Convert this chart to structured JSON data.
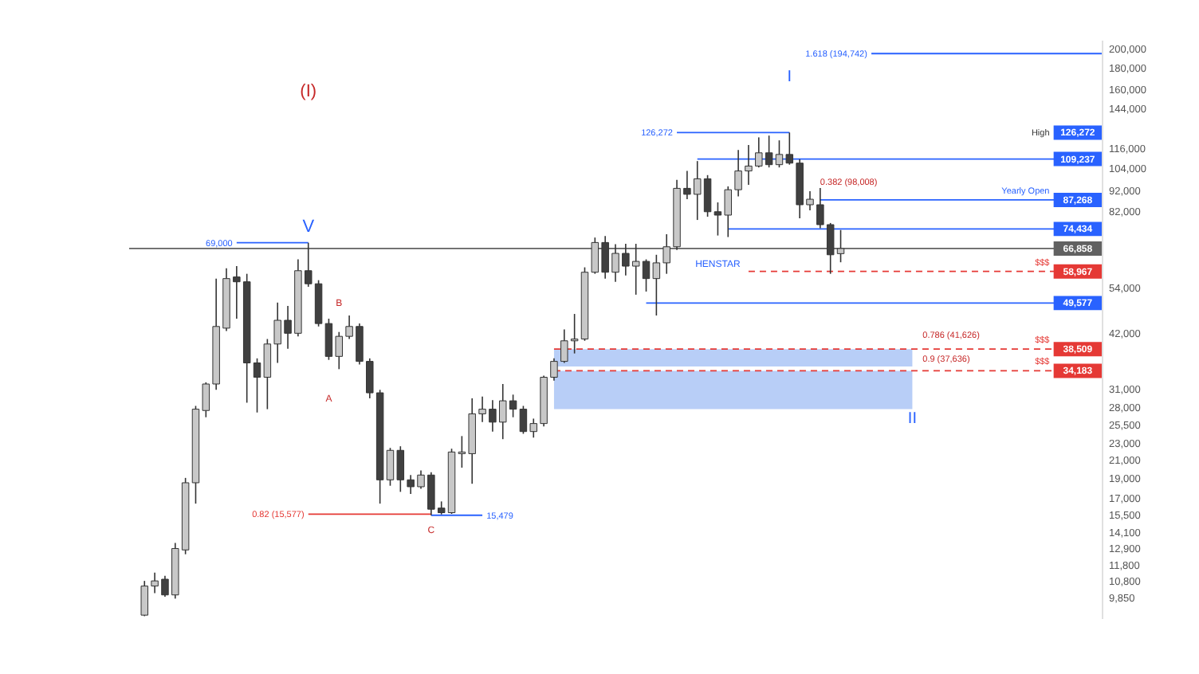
{
  "chart_data": {
    "type": "candlestick",
    "log": true,
    "categories": [
      null,
      null,
      null,
      null,
      null,
      null,
      null,
      null,
      null,
      null,
      null,
      null,
      null,
      null,
      null,
      null,
      null,
      null,
      null,
      null,
      null,
      null,
      null,
      null,
      null,
      null,
      null,
      null,
      null,
      null,
      null,
      null,
      null,
      null,
      null,
      null,
      null,
      null,
      null,
      null,
      null,
      null,
      null,
      null,
      null,
      null,
      null,
      null,
      null,
      null,
      null,
      null,
      null,
      null,
      null,
      null,
      null,
      null,
      null,
      null,
      null,
      null,
      null,
      null,
      null,
      null,
      null,
      null,
      null,
      null,
      null,
      null,
      null,
      null,
      null,
      null,
      null,
      null,
      null,
      null,
      null,
      null,
      null,
      null,
      null,
      null,
      null,
      null,
      null,
      null,
      null,
      null,
      null,
      null,
      null
    ],
    "ohlc": [
      null,
      [
        8950,
        10800,
        8900,
        10500
      ],
      [
        10500,
        11300,
        10100,
        10800
      ],
      [
        10900,
        11100,
        9900,
        10000
      ],
      [
        10000,
        13300,
        9800,
        12900
      ],
      [
        12800,
        19000,
        12500,
        18500
      ],
      [
        18500,
        28200,
        16500,
        27700
      ],
      [
        27500,
        32100,
        26500,
        31800
      ],
      [
        31800,
        56700,
        30800,
        43600
      ],
      [
        43200,
        60000,
        42500,
        56700
      ],
      [
        57200,
        60700,
        45500,
        55700
      ],
      [
        55700,
        58200,
        28700,
        35700
      ],
      [
        35700,
        36600,
        27200,
        33000
      ],
      [
        33000,
        40700,
        27700,
        39600
      ],
      [
        39600,
        49700,
        35700,
        45100
      ],
      [
        45100,
        48800,
        38600,
        42000
      ],
      [
        42000,
        63000,
        41300,
        59200
      ],
      [
        59200,
        69000,
        54200,
        55100
      ],
      [
        55100,
        56200,
        43600,
        44300
      ],
      [
        44300,
        45500,
        36300,
        37000
      ],
      [
        37000,
        42300,
        34500,
        41300
      ],
      [
        41300,
        46300,
        40700,
        43600
      ],
      [
        43600,
        44300,
        35400,
        36000
      ],
      [
        36000,
        36600,
        29400,
        30300
      ],
      [
        30300,
        30800,
        16500,
        18800
      ],
      [
        18800,
        22400,
        18200,
        22100
      ],
      [
        22100,
        22600,
        17600,
        18800
      ],
      [
        18800,
        19300,
        17400,
        18100
      ],
      [
        18100,
        19800,
        17900,
        19300
      ],
      [
        19300,
        19600,
        15479,
        16000
      ],
      [
        16100,
        16700,
        15550,
        15700
      ],
      [
        15700,
        22300,
        15600,
        21900
      ],
      [
        21700,
        23900,
        20100,
        21900
      ],
      [
        21700,
        29400,
        18400,
        27000
      ],
      [
        27000,
        29700,
        25800,
        27700
      ],
      [
        27700,
        29100,
        24500,
        25800
      ],
      [
        25800,
        31800,
        23500,
        29000
      ],
      [
        29000,
        30000,
        26500,
        27700
      ],
      [
        27700,
        28200,
        24200,
        24500
      ],
      [
        24500,
        26300,
        23700,
        25600
      ],
      [
        25600,
        33300,
        25200,
        33000
      ],
      [
        33000,
        36600,
        32400,
        36000
      ],
      [
        36000,
        42900,
        35700,
        40300
      ],
      [
        40300,
        46700,
        37600,
        40700
      ],
      [
        40700,
        60300,
        40300,
        58700
      ],
      [
        58700,
        71000,
        58200,
        69100
      ],
      [
        69100,
        71600,
        56700,
        58700
      ],
      [
        58700,
        68500,
        55700,
        65100
      ],
      [
        65100,
        68600,
        57700,
        60700
      ],
      [
        60700,
        68600,
        51900,
        62300
      ],
      [
        62300,
        63000,
        52800,
        56700
      ],
      [
        56700,
        64600,
        46300,
        61800
      ],
      [
        61800,
        72300,
        58200,
        67500
      ],
      [
        67500,
        97400,
        66300,
        93000
      ],
      [
        93000,
        102300,
        87600,
        90000
      ],
      [
        90000,
        108000,
        78200,
        98000
      ],
      [
        98000,
        100000,
        79600,
        81800
      ],
      [
        81800,
        86100,
        71800,
        80300
      ],
      [
        80300,
        94000,
        71200,
        92300
      ],
      [
        92300,
        114800,
        89000,
        102300
      ],
      [
        102300,
        118000,
        94800,
        105100
      ],
      [
        105100,
        123000,
        104300,
        113000
      ],
      [
        113000,
        124200,
        104300,
        105900
      ],
      [
        105900,
        121000,
        104300,
        112000
      ],
      [
        112000,
        126272,
        105900,
        106800
      ],
      [
        106800,
        109000,
        78900,
        85000
      ],
      [
        85000,
        91500,
        82400,
        87600
      ],
      [
        85000,
        93200,
        74700,
        76200
      ],
      [
        76200,
        76900,
        58200,
        64600
      ],
      [
        65000,
        74000,
        62000,
        66858
      ],
      null,
      null,
      null,
      null,
      null,
      null,
      null,
      null,
      null,
      null,
      null,
      null,
      null,
      null,
      null,
      null,
      null,
      null,
      null,
      null,
      null,
      null,
      null,
      null,
      null
    ],
    "colors": [
      null,
      "#c8c8c8",
      "#c8c8c8",
      "#404040",
      "#c8c8c8",
      "#c8c8c8",
      "#c8c8c8",
      "#c8c8c8",
      "#c8c8c8",
      "#c8c8c8",
      "#404040",
      "#404040",
      "#404040",
      "#c8c8c8",
      "#c8c8c8",
      "#404040",
      "#c8c8c8",
      "#404040",
      "#404040",
      "#404040",
      "#c8c8c8",
      "#c8c8c8",
      "#404040",
      "#404040",
      "#404040",
      "#c8c8c8",
      "#404040",
      "#404040",
      "#c8c8c8",
      "#404040",
      "#404040",
      "#c8c8c8",
      "#c8c8c8",
      "#c8c8c8",
      "#c8c8c8",
      "#404040",
      "#c8c8c8",
      "#404040",
      "#404040",
      "#c8c8c8",
      "#c8c8c8",
      "#c8c8c8",
      "#c8c8c8",
      "#c8c8c8",
      "#c8c8c8",
      "#c8c8c8",
      "#404040",
      "#c8c8c8",
      "#404040",
      "#c8c8c8",
      "#404040",
      "#c8c8c8",
      "#c8c8c8",
      "#c8c8c8",
      "#404040",
      "#c8c8c8",
      "#404040",
      "#404040",
      "#c8c8c8",
      "#c8c8c8",
      "#c8c8c8",
      "#c8c8c8",
      "#404040",
      "#c8c8c8",
      "#404040",
      "#404040",
      "#c8c8c8",
      "#404040",
      "#404040",
      "#c8c8c8",
      null,
      null,
      null,
      null,
      null,
      null,
      null,
      null,
      null,
      null,
      null,
      null,
      null,
      null,
      null,
      null,
      null,
      null,
      null,
      null,
      null,
      null,
      null,
      null,
      null
    ],
    "ylim": [
      8800,
      210000
    ],
    "yticks": [
      {
        "value": 200000,
        "label": "200,000"
      },
      {
        "value": 180000,
        "label": "180,000"
      },
      {
        "value": 160000,
        "label": "160,000"
      },
      {
        "value": 144000,
        "label": "144,000"
      },
      {
        "value": 116000,
        "label": "116,000"
      },
      {
        "value": 104000,
        "label": "104,000"
      },
      {
        "value": 92000,
        "label": "92,000"
      },
      {
        "value": 82000,
        "label": "82,000"
      },
      {
        "value": 54000,
        "label": "54,000"
      },
      {
        "value": 42000,
        "label": "42,000"
      },
      {
        "value": 31000,
        "label": "31,000"
      },
      {
        "value": 28000,
        "label": "28,000"
      },
      {
        "value": 25500,
        "label": "25,500"
      },
      {
        "value": 23000,
        "label": "23,000"
      },
      {
        "value": 21000,
        "label": "21,000"
      },
      {
        "value": 19000,
        "label": "19,000"
      },
      {
        "value": 17000,
        "label": "17,000"
      },
      {
        "value": 15500,
        "label": "15,500"
      },
      {
        "value": 14100,
        "label": "14,100"
      },
      {
        "value": 12900,
        "label": "12,900"
      },
      {
        "value": 11800,
        "label": "11,800"
      },
      {
        "value": 10800,
        "label": "10,800"
      },
      {
        "value": 9850,
        "label": "9,850"
      }
    ],
    "ref_lines": [
      {
        "axis": "y",
        "value": 194742,
        "label": "1.618 (194,742)",
        "color": "#2962ff",
        "line_style": "solid"
      },
      {
        "axis": "y",
        "value": 126272,
        "label": "126,272",
        "color": "#2962ff",
        "line_style": "solid"
      },
      {
        "axis": "y",
        "value": 109237,
        "label": "109,237",
        "color": "#2962ff",
        "line_style": "solid"
      },
      {
        "axis": "y",
        "value": 87268,
        "label": "87,268",
        "color": "#2962ff",
        "line_style": "solid"
      },
      {
        "axis": "y",
        "value": 74434,
        "label": "74,434",
        "color": "#2962ff",
        "line_style": "solid"
      },
      {
        "axis": "y",
        "value": 66858,
        "label": "66,858",
        "color": "#616161",
        "line_style": "solid"
      },
      {
        "axis": "y",
        "value": 58967,
        "label": "58,967",
        "color": "#e53935",
        "line_style": "dashed"
      },
      {
        "axis": "y",
        "value": 49577,
        "label": "49,577",
        "color": "#2962ff",
        "line_style": "solid"
      },
      {
        "axis": "y",
        "value": 38509,
        "label": "38,509",
        "color": "#e53935",
        "line_style": "dashed"
      },
      {
        "axis": "y",
        "value": 34183,
        "label": "34,183",
        "color": "#e53935",
        "line_style": "dashed"
      },
      {
        "axis": "y",
        "value": 69000,
        "label": "69,000",
        "color": "#2962ff",
        "line_style": "solid"
      },
      {
        "axis": "y",
        "value": 15577,
        "label": "0.82 (15,577)",
        "color": "#e53935",
        "line_style": "solid"
      },
      {
        "axis": "y",
        "value": 15479,
        "label": "15,479",
        "color": "#2962ff",
        "line_style": "solid"
      }
    ],
    "bands": [
      {
        "axis": "y",
        "from": 35000,
        "to": 38509,
        "color": "#7ea6f0"
      },
      {
        "axis": "y",
        "from": 27700,
        "to": 34183,
        "color": "#7ea6f0"
      }
    ],
    "annotations": [
      "(I)",
      "V",
      "A",
      "B",
      "C",
      "HENSTAR",
      "I",
      "II",
      "0.382 (98,008)",
      "0.786 (41,626)",
      "0.9 (37,636)",
      "High",
      "Yearly Open",
      "$$$",
      "$$$",
      "$$$"
    ]
  }
}
